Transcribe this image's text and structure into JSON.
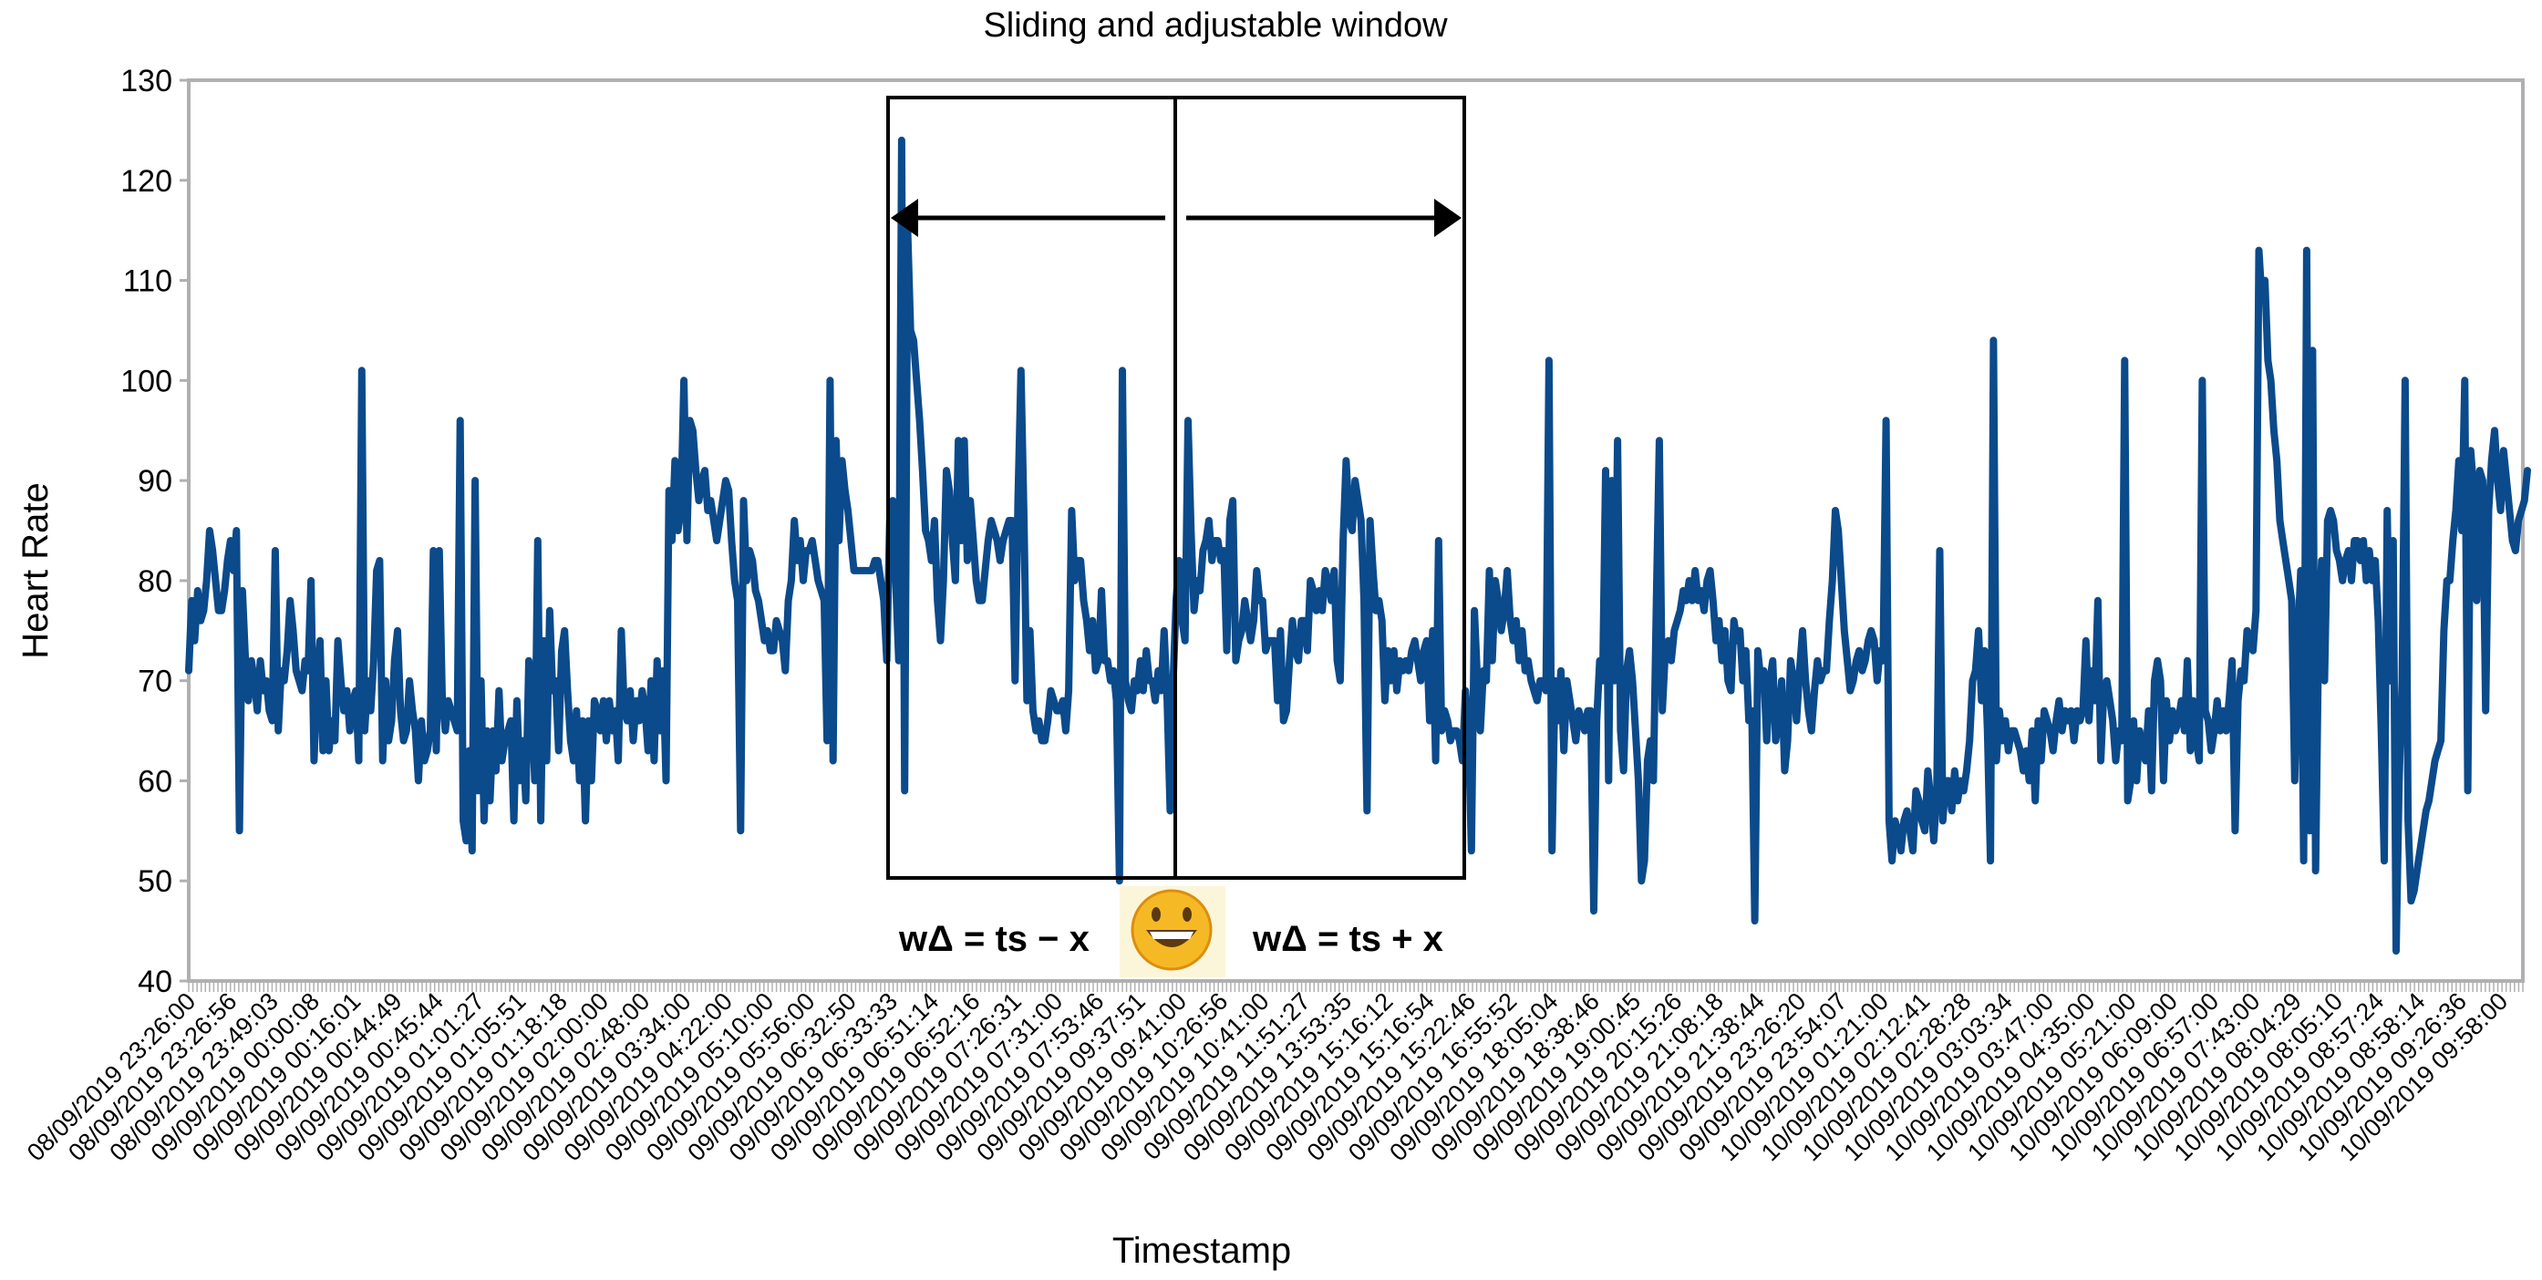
{
  "chart_data": {
    "type": "line",
    "title": "Sliding and adjustable window",
    "xlabel": "Timestamp",
    "ylabel": "Heart Rate",
    "ylim": [
      40,
      130
    ],
    "yticks": [
      40,
      50,
      60,
      70,
      80,
      90,
      100,
      110,
      120,
      130
    ],
    "grid": false,
    "legend": "none",
    "series_color": "#0b4a8b",
    "x_tick_labels": [
      "08/09/2019 23:26:00",
      "08/09/2019 23:26:56",
      "08/09/2019 23:49:03",
      "09/09/2019 00:00:08",
      "09/09/2019 00:16:01",
      "09/09/2019 00:44:49",
      "09/09/2019 00:45:44",
      "09/09/2019 01:01:27",
      "09/09/2019 01:05:51",
      "09/09/2019 01:18:18",
      "09/09/2019 02:00:00",
      "09/09/2019 02:48:00",
      "09/09/2019 03:34:00",
      "09/09/2019 04:22:00",
      "09/09/2019 05:10:00",
      "09/09/2019 05:56:00",
      "09/09/2019 06:32:50",
      "09/09/2019 06:33:33",
      "09/09/2019 06:51:14",
      "09/09/2019 06:52:16",
      "09/09/2019 07:26:31",
      "09/09/2019 07:31:00",
      "09/09/2019 07:53:46",
      "09/09/2019 09:37:51",
      "09/09/2019 09:41:00",
      "09/09/2019 10:26:56",
      "09/09/2019 10:41:00",
      "09/09/2019 11:51:27",
      "09/09/2019 13:53:35",
      "09/09/2019 15:16:12",
      "09/09/2019 15:16:54",
      "09/09/2019 15:22:46",
      "09/09/2019 16:55:52",
      "09/09/2019 18:05:04",
      "09/09/2019 18:38:46",
      "09/09/2019 19:00:45",
      "09/09/2019 20:15:26",
      "09/09/2019 21:08:18",
      "09/09/2019 21:38:44",
      "09/09/2019 23:26:20",
      "09/09/2019 23:54:07",
      "10/09/2019 01:21:00",
      "10/09/2019 02:12:41",
      "10/09/2019 02:28:28",
      "10/09/2019 03:03:34",
      "10/09/2019 03:47:00",
      "10/09/2019 04:35:00",
      "10/09/2019 05:21:00",
      "10/09/2019 06:09:00",
      "10/09/2019 06:57:00",
      "10/09/2019 07:43:00",
      "10/09/2019 08:04:29",
      "10/09/2019 08:05:10",
      "10/09/2019 08:57:24",
      "10/09/2019 08:58:14",
      "10/09/2019 09:26:36",
      "10/09/2019 09:58:00"
    ],
    "values": [
      71,
      78,
      74,
      79,
      76,
      77,
      80,
      85,
      83,
      80,
      77,
      77,
      79,
      82,
      84,
      81,
      85,
      55,
      79,
      72,
      68,
      72,
      70,
      67,
      72,
      69,
      70,
      67,
      66,
      83,
      65,
      71,
      70,
      73,
      78,
      75,
      71,
      70,
      69,
      72,
      71,
      80,
      62,
      70,
      74,
      63,
      70,
      63,
      66,
      64,
      74,
      70,
      67,
      69,
      65,
      68,
      69,
      62,
      101,
      65,
      70,
      67,
      72,
      81,
      82,
      62,
      70,
      64,
      66,
      72,
      75,
      67,
      64,
      65,
      70,
      67,
      65,
      60,
      66,
      62,
      63,
      65,
      83,
      63,
      83,
      68,
      65,
      68,
      67,
      66,
      65,
      96,
      56,
      54,
      63,
      53,
      90,
      59,
      70,
      56,
      65,
      58,
      65,
      61,
      69,
      62,
      64,
      65,
      66,
      56,
      68,
      60,
      64,
      58,
      72,
      68,
      60,
      84,
      56,
      74,
      62,
      77,
      69,
      70,
      63,
      73,
      75,
      69,
      64,
      62,
      67,
      60,
      66,
      56,
      66,
      60,
      68,
      67,
      65,
      68,
      64,
      68,
      65,
      67,
      62,
      75,
      67,
      66,
      69,
      64,
      68,
      66,
      69,
      67,
      63,
      70,
      62,
      72,
      65,
      71,
      60,
      89,
      84,
      92,
      85,
      87,
      100,
      84,
      96,
      95,
      91,
      88,
      90,
      91,
      87,
      88,
      86,
      84,
      86,
      88,
      90,
      89,
      84,
      80,
      78,
      55,
      88,
      80,
      83,
      82,
      79,
      78,
      76,
      74,
      75,
      73,
      73,
      76,
      75,
      74,
      71,
      78,
      80,
      86,
      82,
      84,
      80,
      83,
      83,
      84,
      82,
      80,
      79,
      78,
      64,
      100,
      62,
      94,
      84,
      92,
      89,
      87,
      84,
      81,
      81,
      81,
      81,
      81,
      81,
      81,
      82,
      82,
      80,
      78,
      72,
      86,
      88,
      80,
      72,
      124,
      59,
      115,
      105,
      104,
      100,
      96,
      91,
      85,
      84,
      82,
      86,
      78,
      74,
      80,
      91,
      89,
      84,
      80,
      94,
      84,
      94,
      82,
      88,
      84,
      80,
      78,
      78,
      81,
      84,
      86,
      85,
      84,
      82,
      84,
      85,
      86,
      86,
      70,
      88,
      101,
      86,
      68,
      75,
      67,
      65,
      66,
      64,
      64,
      66,
      69,
      68,
      67,
      67,
      68,
      65,
      69,
      87,
      80,
      82,
      82,
      78,
      76,
      73,
      76,
      71,
      72,
      79,
      72,
      72,
      70,
      71,
      68,
      50,
      101,
      70,
      68,
      67,
      70,
      69,
      72,
      69,
      73,
      70,
      70,
      68,
      71,
      69,
      75,
      68,
      57,
      70,
      78,
      82,
      76,
      74,
      96,
      85,
      77,
      80,
      79,
      83,
      84,
      86,
      82,
      84,
      84,
      82,
      83,
      73,
      86,
      88,
      72,
      74,
      75,
      78,
      76,
      74,
      76,
      81,
      78,
      78,
      73,
      74,
      74,
      74,
      68,
      75,
      66,
      67,
      72,
      76,
      73,
      72,
      76,
      76,
      73,
      80,
      79,
      77,
      79,
      77,
      81,
      80,
      78,
      81,
      72,
      70,
      84,
      92,
      86,
      85,
      90,
      88,
      86,
      78,
      57,
      86,
      81,
      77,
      78,
      76,
      68,
      73,
      70,
      73,
      69,
      72,
      71,
      72,
      71,
      73,
      74,
      72,
      70,
      73,
      74,
      66,
      75,
      62,
      84,
      65,
      67,
      66,
      64,
      65,
      65,
      64,
      62,
      69,
      65,
      53,
      77,
      70,
      65,
      71,
      70,
      81,
      72,
      80,
      78,
      75,
      77,
      81,
      76,
      74,
      76,
      72,
      75,
      71,
      72,
      70,
      69,
      68,
      70,
      70,
      69,
      102,
      53,
      70,
      66,
      71,
      63,
      70,
      68,
      66,
      64,
      67,
      66,
      65,
      67,
      67,
      47,
      66,
      72,
      70,
      91,
      60,
      90,
      70,
      94,
      65,
      61,
      71,
      73,
      70,
      65,
      60,
      50,
      52,
      62,
      64,
      60,
      78,
      94,
      67,
      73,
      74,
      72,
      75,
      76,
      77,
      79,
      78,
      80,
      78,
      81,
      78,
      79,
      77,
      80,
      81,
      78,
      74,
      76,
      72,
      75,
      70,
      69,
      76,
      74,
      75,
      70,
      73,
      66,
      67,
      46,
      73,
      70,
      71,
      64,
      70,
      72,
      64,
      66,
      70,
      61,
      64,
      72,
      70,
      66,
      71,
      75,
      70,
      67,
      65,
      69,
      72,
      70,
      71,
      71,
      76,
      80,
      87,
      85,
      80,
      75,
      72,
      69,
      70,
      72,
      73,
      71,
      72,
      74,
      75,
      74,
      70,
      73,
      72,
      96,
      56,
      52,
      56,
      55,
      53,
      56,
      57,
      55,
      53,
      59,
      58,
      56,
      55,
      61,
      58,
      54,
      59,
      83,
      56,
      60,
      60,
      57,
      61,
      58,
      60,
      59,
      61,
      64,
      70,
      71,
      75,
      68,
      73,
      65,
      52,
      104,
      62,
      67,
      64,
      66,
      63,
      65,
      65,
      64,
      63,
      61,
      63,
      60,
      65,
      58,
      66,
      62,
      67,
      66,
      65,
      63,
      66,
      68,
      65,
      67,
      66,
      67,
      64,
      67,
      66,
      67,
      74,
      66,
      71,
      68,
      78,
      62,
      69,
      70,
      68,
      66,
      62,
      65,
      64,
      102,
      58,
      60,
      66,
      60,
      65,
      63,
      62,
      67,
      59,
      70,
      72,
      70,
      60,
      68,
      64,
      67,
      65,
      66,
      68,
      65,
      72,
      63,
      68,
      64,
      62,
      100,
      67,
      66,
      63,
      65,
      68,
      65,
      67,
      65,
      68,
      72,
      55,
      68,
      71,
      70,
      75,
      74,
      73,
      77,
      113,
      108,
      110,
      102,
      100,
      95,
      92,
      86,
      84,
      82,
      80,
      78,
      60,
      74,
      81,
      52,
      113,
      55,
      103,
      51,
      75,
      82,
      70,
      86,
      87,
      86,
      83,
      82,
      80,
      82,
      83,
      80,
      84,
      84,
      82,
      84,
      80,
      83,
      80,
      82,
      76,
      65,
      52,
      87,
      70,
      84,
      43,
      60,
      70,
      100,
      56,
      48,
      49,
      51,
      53,
      55,
      57,
      58,
      60,
      62,
      63,
      64,
      75,
      80,
      80,
      84,
      87,
      92,
      85,
      100,
      59,
      93,
      89,
      78,
      91,
      90,
      67,
      87,
      92,
      95,
      90,
      87,
      93,
      90,
      87,
      84,
      83,
      86,
      87,
      88,
      91
    ],
    "annotations": {
      "left_window": "wΔ = ts − x",
      "right_window": "wΔ = ts + x",
      "emoji": "😄"
    }
  }
}
